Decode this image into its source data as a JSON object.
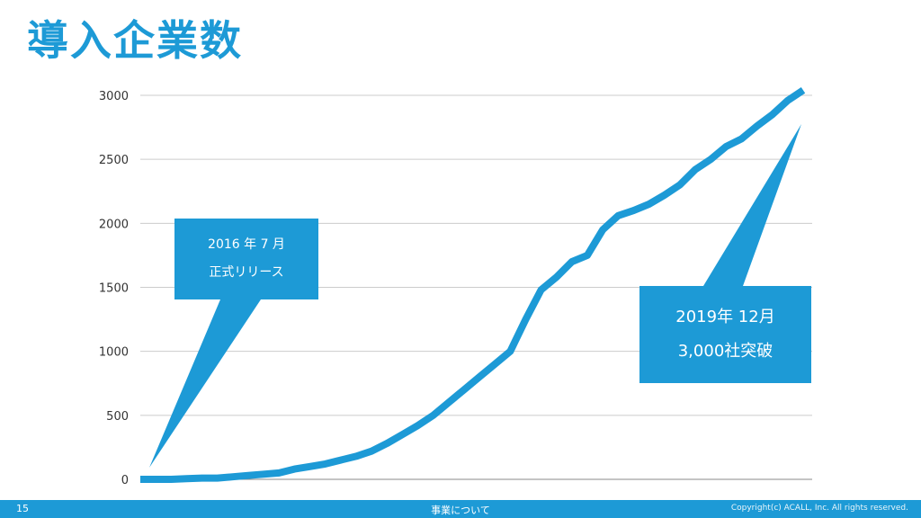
{
  "slide": {
    "title": "導入企業数"
  },
  "callouts": {
    "left": {
      "line1": "2016 年 7 月",
      "line2": "正式リリース"
    },
    "right": {
      "line1": "2019年 12月",
      "line2": "3,000社突破"
    }
  },
  "footer": {
    "page": "15",
    "section": "事業について",
    "copyright": "Copyright(c) ACALL, Inc. All rights reserved."
  },
  "colors": {
    "accent": "#1d9ad6",
    "grid": "#cccccc",
    "axis_text": "#333333"
  },
  "chart_data": {
    "type": "line",
    "title": "",
    "xlabel": "",
    "ylabel": "",
    "ylim": [
      0,
      3000
    ],
    "yticks": [
      0,
      500,
      1000,
      1500,
      2000,
      2500,
      3000
    ],
    "grid": true,
    "series": [
      {
        "values": [
          0,
          0,
          0,
          5,
          10,
          10,
          20,
          30,
          40,
          50,
          80,
          100,
          120,
          150,
          180,
          220,
          280,
          350,
          420,
          500,
          600,
          700,
          800,
          900,
          1000,
          1250,
          1480,
          1580,
          1700,
          1750,
          1950,
          2060,
          2100,
          2150,
          2220,
          2300,
          2420,
          2500,
          2600,
          2660,
          2760,
          2850,
          2960,
          3040
        ]
      }
    ]
  }
}
